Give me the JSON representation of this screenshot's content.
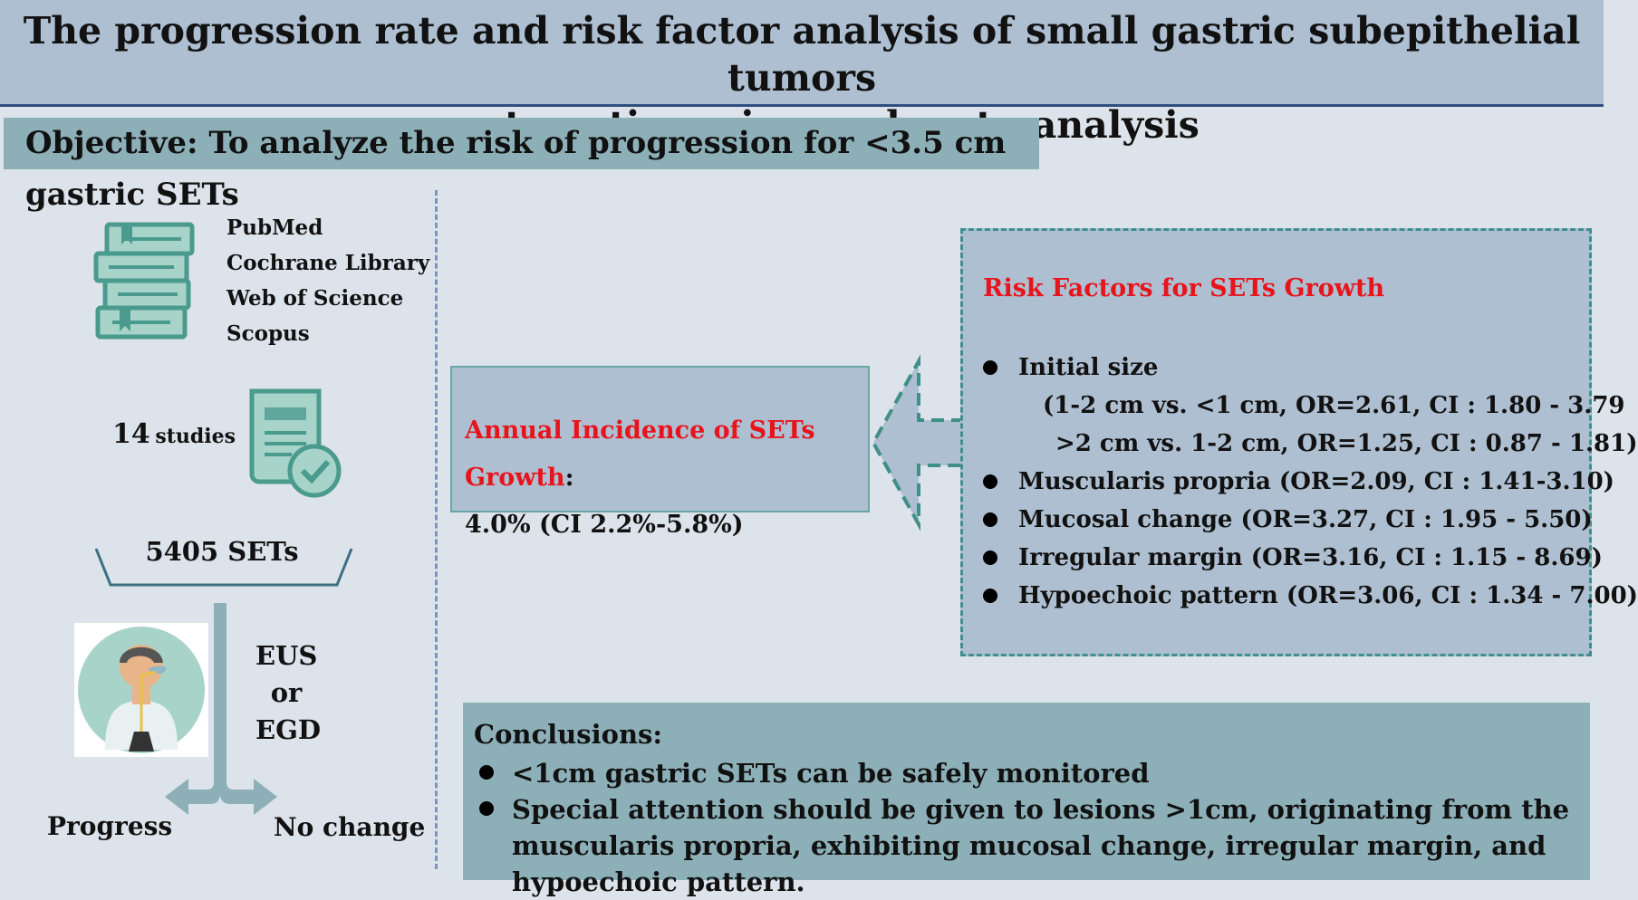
{
  "title": {
    "line1": "The progression rate and risk factor analysis of small gastric subepithelial tumors",
    "line2": "a systematic review and meta-analysis"
  },
  "objective": "Objective: To analyze the risk of progression for <3.5 cm gastric SETs",
  "search": {
    "databases": [
      "PubMed",
      "Cochrane Library",
      "Web of Science",
      "Scopus"
    ],
    "studies_count": "14",
    "studies_unit": "studies",
    "sets_total": "5405 SETs"
  },
  "followup": {
    "methods": [
      "EUS",
      "or",
      "EGD"
    ],
    "outcome_progress": "Progress",
    "outcome_no_change": "No change"
  },
  "incidence": {
    "label": "Annual Incidence of SETs Growth",
    "colon": ":",
    "value": "4.0% (CI 2.2%-5.8%)"
  },
  "risk_factors": {
    "title": "Risk Factors for SETs Growth",
    "initial_size": "Initial size",
    "initial_size_detail1": "(1-2 cm vs. <1 cm, OR=2.61, CI : 1.80 - 3.79",
    "initial_size_detail2": ">2 cm vs. 1-2 cm, OR=1.25, CI : 0.87 - 1.81)",
    "items": [
      "Muscularis propria (OR=2.09, CI : 1.41-3.10)",
      "Mucosal change (OR=3.27, CI : 1.95 - 5.50)",
      "Irregular margin (OR=3.16, CI : 1.15 - 8.69)",
      "Hypoechoic pattern (OR=3.06, CI : 1.34 - 7.00)"
    ]
  },
  "conclusions": {
    "title": "Conclusions:",
    "items": [
      "<1cm gastric SETs can be safely monitored",
      "Special attention should be given to lesions >1cm, originating from the muscularis propria, exhibiting mucosal change, irregular margin, and hypoechoic pattern."
    ]
  },
  "colors": {
    "title_bg": "#aebfd1",
    "panel_teal": "#8db0b8",
    "highlight_red": "#e8141c",
    "icon_teal": "#5fa79c"
  }
}
